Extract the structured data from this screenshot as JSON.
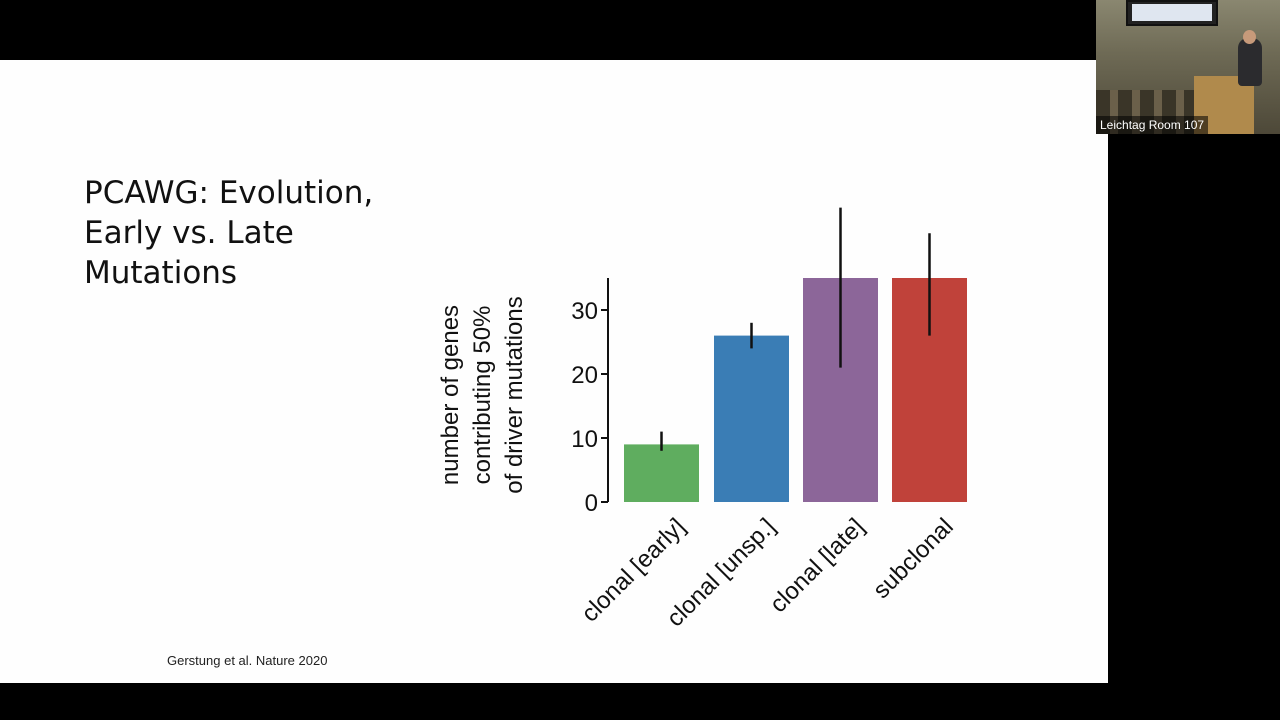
{
  "slide": {
    "title": "PCAWG: Evolution,\nEarly vs. Late\nMutations",
    "citation": "Gerstung et al. Nature 2020"
  },
  "video": {
    "room_label": "Leichtag Room 107"
  },
  "chart_data": {
    "type": "bar",
    "categories": [
      "clonal [early]",
      "clonal [unsp.]",
      "clonal [late]",
      "subclonal"
    ],
    "values": [
      9,
      26,
      35,
      35
    ],
    "error_low": [
      8,
      24,
      21,
      26
    ],
    "error_high": [
      11,
      28,
      46,
      42
    ],
    "colors": [
      "#5fad5f",
      "#3a7db5",
      "#8c6699",
      "#c0423a"
    ],
    "ylabel_lines": [
      "number of genes",
      "contributing 50%",
      "of driver mutations"
    ],
    "yticks": [
      0,
      10,
      20,
      30
    ],
    "ylim": [
      0,
      35
    ],
    "grid": false,
    "xlabel": ""
  }
}
